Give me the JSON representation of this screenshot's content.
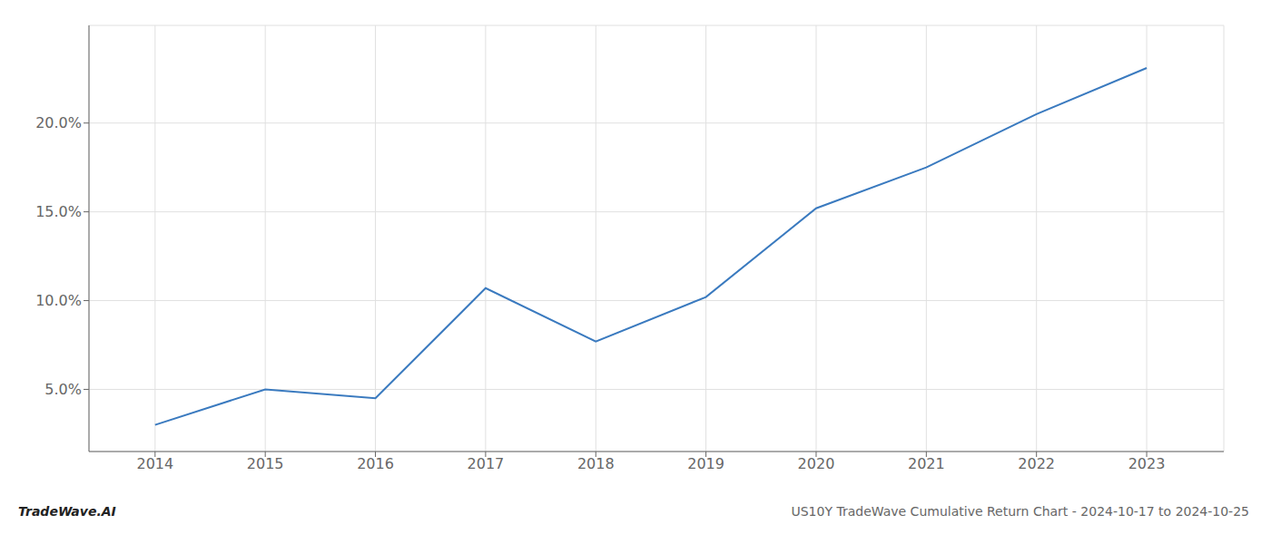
{
  "chart_data": {
    "type": "line",
    "title": "US10Y TradeWave Cumulative Return Chart - 2024-10-17 to 2024-10-25",
    "annotations": [
      "TradeWave.AI"
    ],
    "x": [
      2014,
      2015,
      2016,
      2017,
      2018,
      2019,
      2020,
      2021,
      2022,
      2023
    ],
    "values": [
      3.0,
      5.0,
      4.5,
      10.7,
      7.7,
      10.2,
      15.2,
      17.5,
      20.5,
      23.1
    ],
    "color": "#3a7abf",
    "xlim": [
      2013.4,
      2023.7
    ],
    "ylim": [
      1.5,
      25.5
    ],
    "xticks": [
      2014,
      2015,
      2016,
      2017,
      2018,
      2019,
      2020,
      2021,
      2022,
      2023
    ],
    "yticks": [
      {
        "value": 5.0,
        "label": "5.0%"
      },
      {
        "value": 10.0,
        "label": "10.0%"
      },
      {
        "value": 15.0,
        "label": "15.0%"
      },
      {
        "value": 20.0,
        "label": "20.0%"
      }
    ],
    "grid": true
  }
}
